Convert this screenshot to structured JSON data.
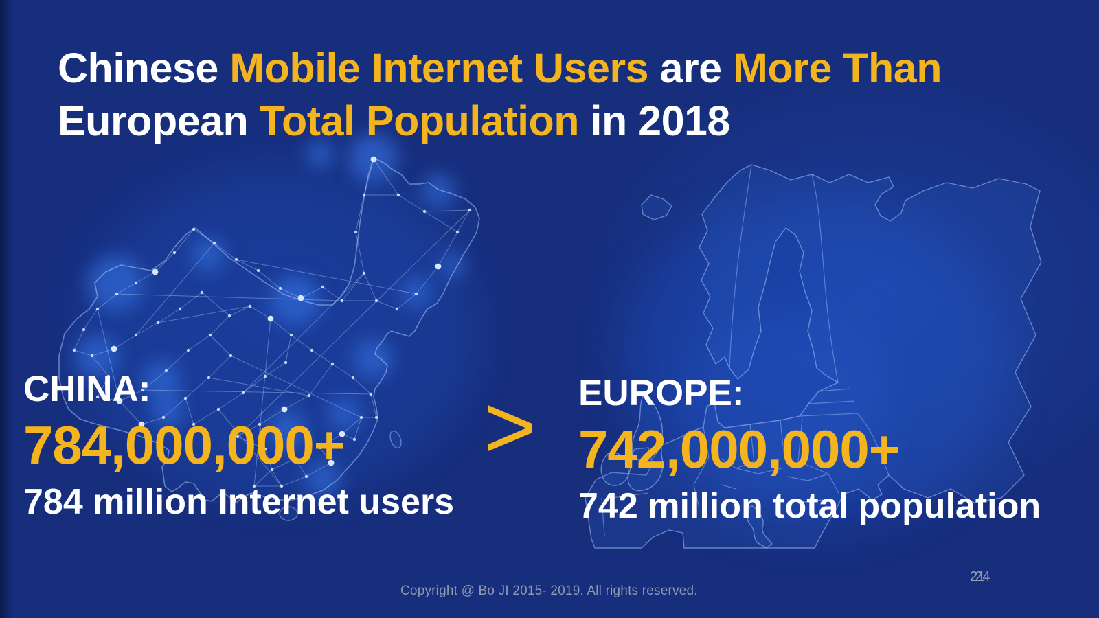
{
  "slide": {
    "title": {
      "line1": [
        {
          "text": "Chinese ",
          "color": "white"
        },
        {
          "text": "Mobile Internet Users",
          "color": "yellow"
        },
        {
          "text": " are ",
          "color": "white"
        },
        {
          "text": "More Than",
          "color": "yellow"
        }
      ],
      "line2": [
        {
          "text": "European ",
          "color": "white"
        },
        {
          "text": "Total Population",
          "color": "yellow"
        },
        {
          "text": " in 2018",
          "color": "white"
        }
      ]
    },
    "china": {
      "label": "CHINA:",
      "value": "784,000,000+",
      "caption": "784 million Internet users"
    },
    "comparison": {
      "symbol": ">"
    },
    "europe": {
      "label": "EUROPE:",
      "value": "742,000,000+",
      "caption": "742 million total population"
    },
    "maps": {
      "left": "china-network-map",
      "right": "europe-outline-map"
    },
    "footer": {
      "copyright": "Copyright @ Bo JI 2015- 2019. All rights reserved.",
      "page_number": "21",
      "page_number_overlap": "24"
    },
    "colors": {
      "background": "#172E7D",
      "accent_yellow": "#F4B41E",
      "text_white": "#FFFFFF",
      "footer_gray": "#99A2B8",
      "map_line": "#A9C4F0"
    }
  }
}
